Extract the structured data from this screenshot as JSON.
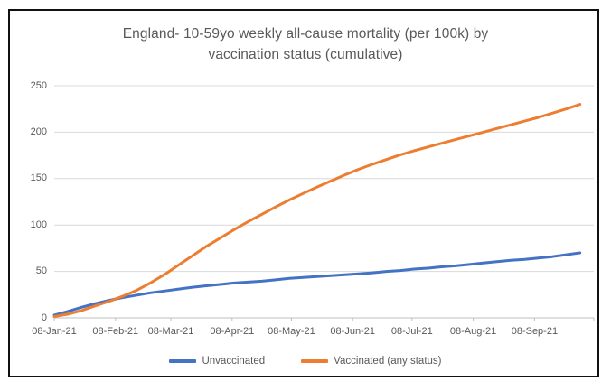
{
  "chart_data": {
    "type": "line",
    "title_line1": "England- 10-59yo weekly all-cause mortality (per 100k) by",
    "title_line2": "vaccination status (cumulative)",
    "x_unit": "days since 08-Jan-21, weekly points",
    "x_days": [
      0,
      7,
      14,
      21,
      28,
      35,
      42,
      49,
      56,
      63,
      70,
      77,
      84,
      91,
      98,
      105,
      112,
      119,
      126,
      133,
      140,
      147,
      154,
      161,
      168,
      175,
      182,
      189,
      196,
      203,
      210,
      217,
      224,
      231,
      238,
      245,
      252,
      259,
      266
    ],
    "series": [
      {
        "name": "Unvaccinated",
        "color": "#4472C4",
        "values": [
          3,
          7,
          11.5,
          15.5,
          19,
          22,
          24.5,
          27,
          29,
          31,
          33,
          34.5,
          36,
          37.5,
          38.5,
          39.5,
          41,
          42.5,
          43.5,
          44.5,
          45.5,
          46.5,
          47.5,
          48.5,
          50,
          51,
          52.5,
          53.5,
          55,
          56,
          57.5,
          59,
          60.5,
          62,
          63,
          64.5,
          66,
          68,
          70
        ]
      },
      {
        "name": "Vaccinated (any status)",
        "color": "#ED7D31",
        "values": [
          1.5,
          4,
          8,
          13,
          18,
          23.5,
          30,
          38,
          47,
          57,
          67,
          77,
          86,
          95,
          103.5,
          111.5,
          119.5,
          127,
          134,
          141,
          147.5,
          154,
          160,
          165.5,
          170.5,
          175.5,
          180,
          184,
          188,
          192,
          196,
          200,
          204,
          208,
          212,
          216,
          220.5,
          225,
          230
        ]
      }
    ],
    "x_ticks": [
      {
        "label": "08-Jan-21",
        "day": 0
      },
      {
        "label": "08-Feb-21",
        "day": 31
      },
      {
        "label": "08-Mar-21",
        "day": 59
      },
      {
        "label": "08-Apr-21",
        "day": 90
      },
      {
        "label": "08-May-21",
        "day": 120
      },
      {
        "label": "08-Jun-21",
        "day": 151
      },
      {
        "label": "08-Jul-21",
        "day": 181
      },
      {
        "label": "08-Aug-21",
        "day": 212
      },
      {
        "label": "08-Sep-21",
        "day": 243
      }
    ],
    "x_axis_max_day": 273,
    "y_ticks": [
      0,
      50,
      100,
      150,
      200,
      250
    ],
    "ylim": [
      0,
      250
    ],
    "grid": "horizontal-only",
    "legend_position": "bottom",
    "colors": {
      "title": "#595959",
      "axis_text": "#595959",
      "gridline": "#D9D9D9",
      "axis_line": "#BFBFBF"
    }
  }
}
